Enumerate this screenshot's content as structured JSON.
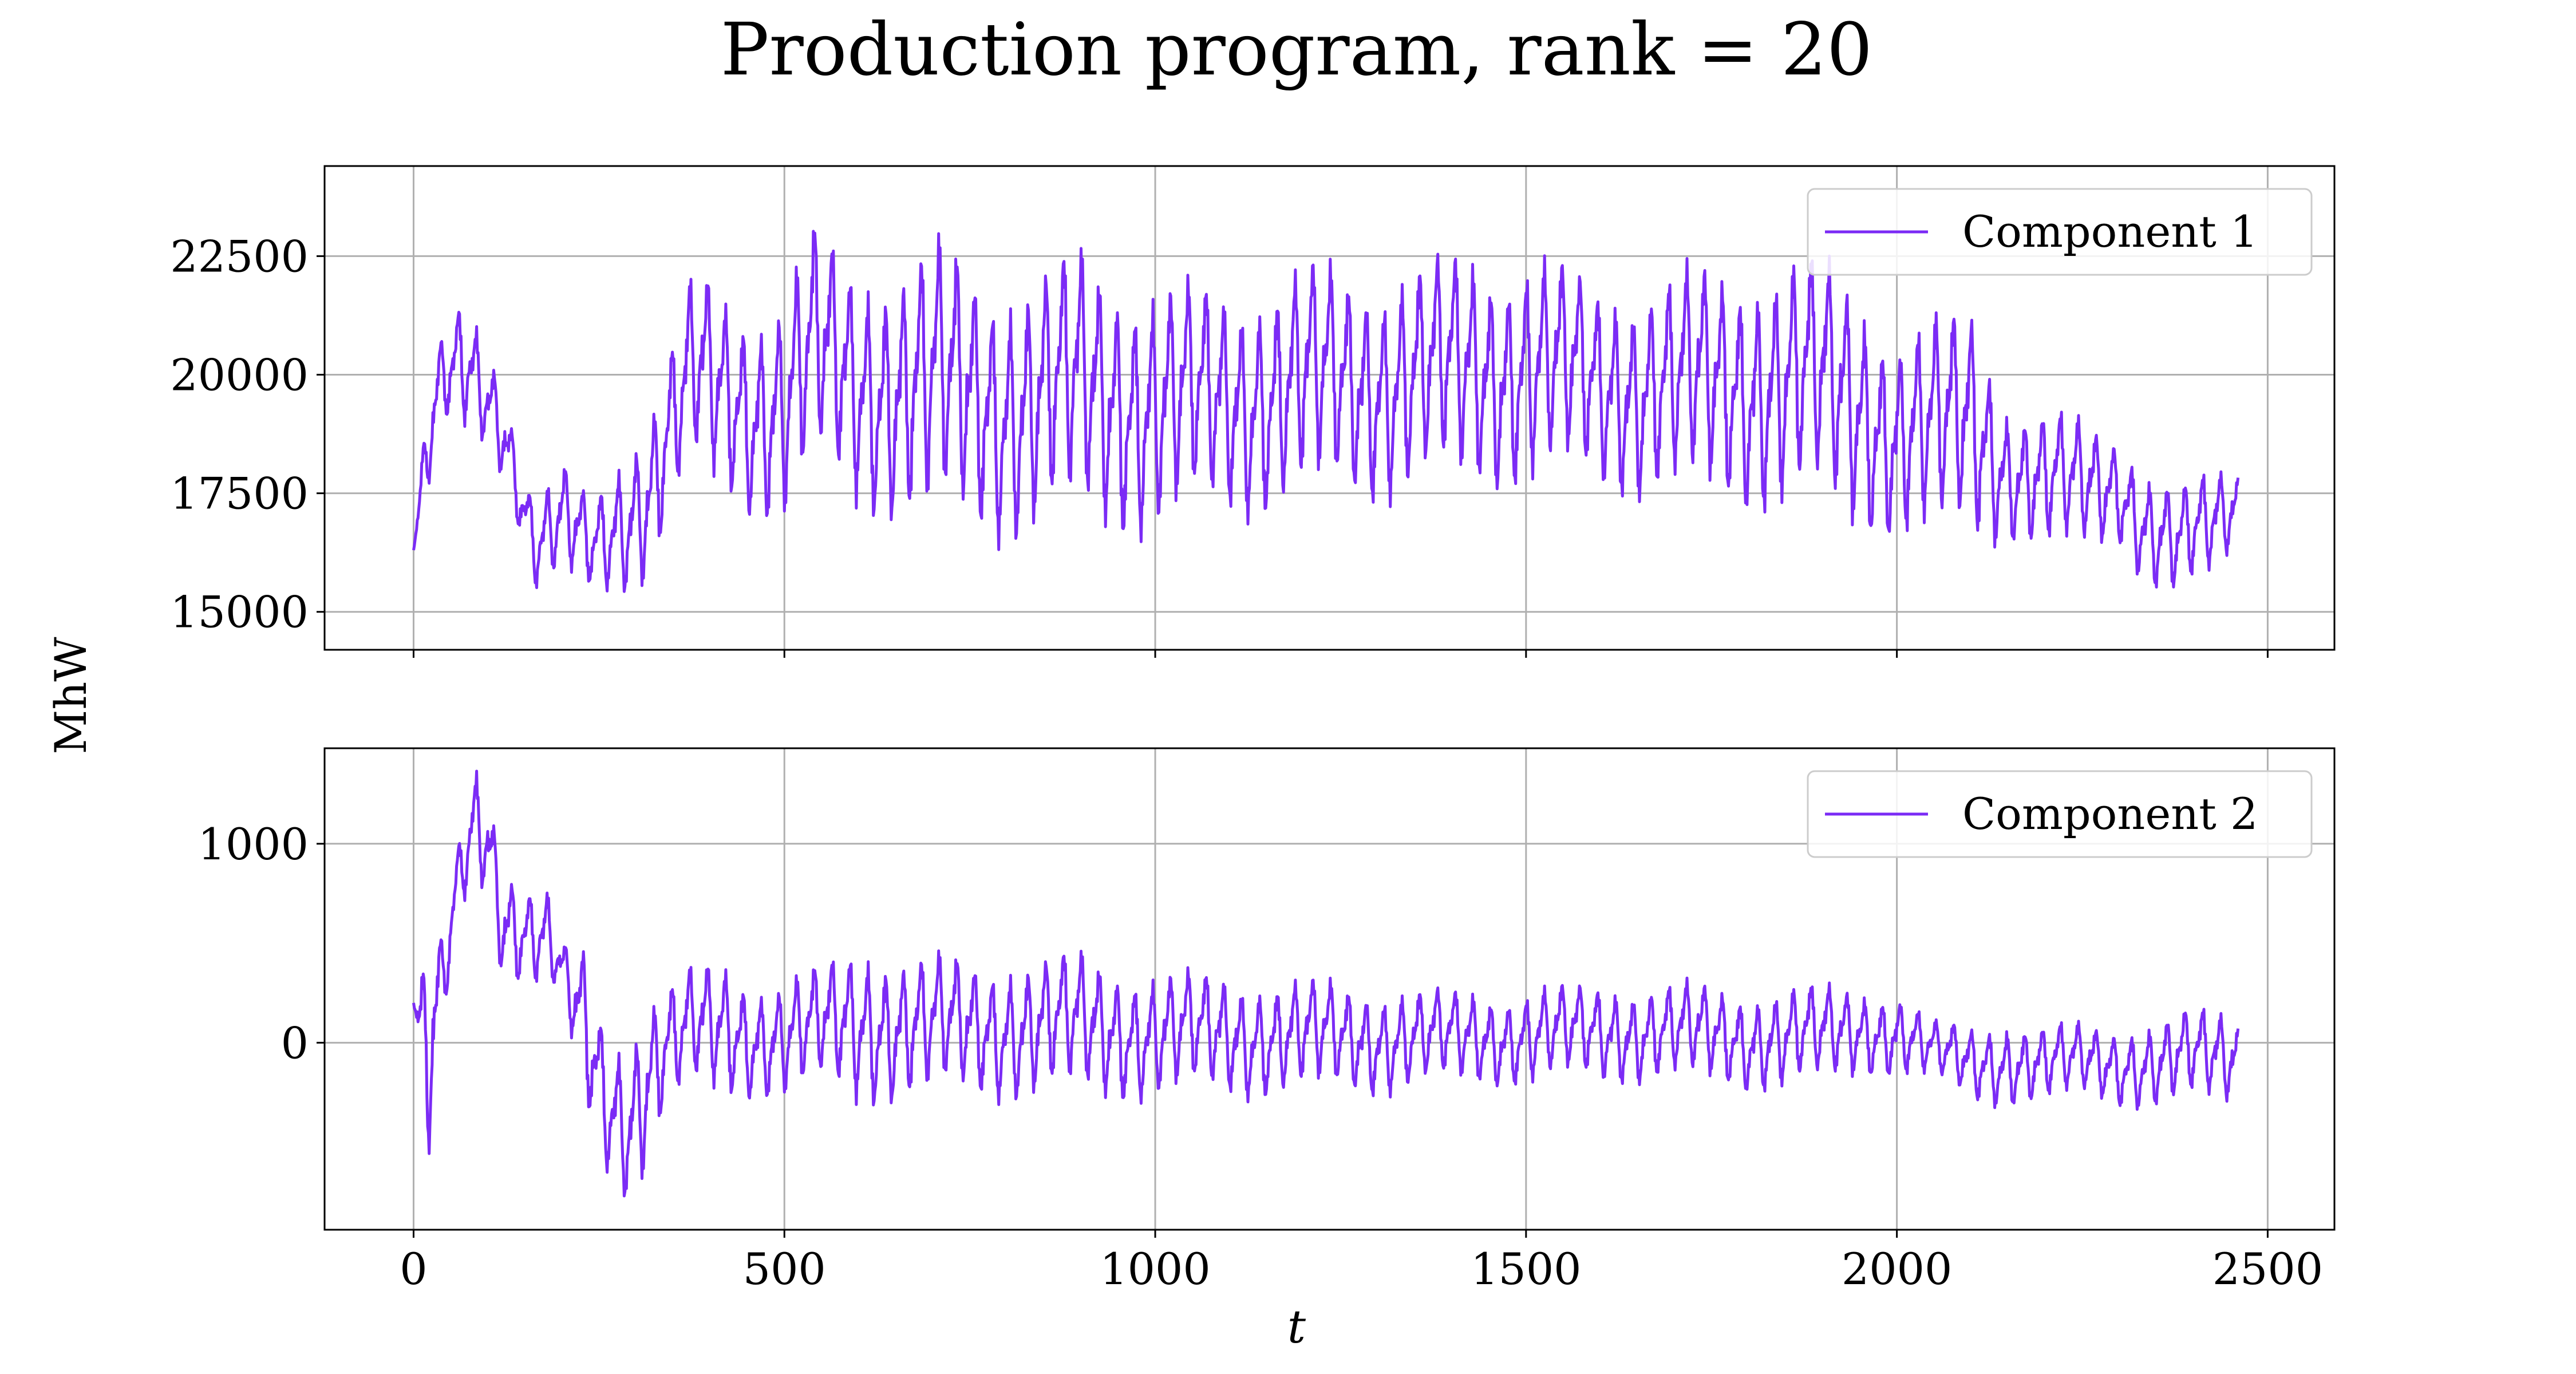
{
  "figure": {
    "title": "Production program, rank = 20",
    "ylabel": "MhW",
    "xlabel": "t"
  },
  "chart_data": [
    {
      "type": "line",
      "title": "",
      "xlabel": "t",
      "ylabel": "MhW",
      "xlim": [
        -120,
        2590
      ],
      "ylim": [
        14200,
        24400
      ],
      "xticks": [
        0,
        500,
        1000,
        1500,
        2000,
        2500
      ],
      "yticks": [
        15000,
        17500,
        20000,
        22500
      ],
      "grid": true,
      "legend_position": "top-right",
      "color": "#7b2bf5",
      "series": [
        {
          "name": "Component 1",
          "envelope": {
            "x": [
              0,
              20,
              40,
              70,
              100,
              120,
              140,
              165,
              200,
              240,
              280,
              320,
              350,
              380,
              420,
              460,
              500,
              540,
              600,
              700,
              800,
              900,
              1000,
              1100,
              1200,
              1300,
              1400,
              1500,
              1600,
              1700,
              1800,
              1900,
              1950,
              2000,
              2060,
              2100,
              2150,
              2200,
              2250,
              2300,
              2340,
              2380,
              2420,
              2460
            ],
            "upper": [
              16300,
              19900,
              21000,
              21800,
              20700,
              20300,
              18700,
              17400,
              18200,
              17500,
              18600,
              19600,
              21000,
              22500,
              22000,
              21800,
              22100,
              23400,
              22600,
              23100,
              22400,
              22900,
              22300,
              22100,
              22600,
              22500,
              22800,
              22900,
              22200,
              22400,
              22700,
              22800,
              22200,
              21200,
              21400,
              21900,
              19600,
              19400,
              19200,
              19000,
              18100,
              17700,
              18100,
              18300
            ],
            "lower": [
              16300,
              17200,
              18600,
              18500,
              18400,
              17800,
              16800,
              15300,
              15500,
              15200,
              15300,
              15600,
              16900,
              17500,
              17200,
              16800,
              16700,
              17500,
              17000,
              16400,
              16300,
              16500,
              16400,
              16800,
              17000,
              17200,
              17300,
              17500,
              17400,
              17100,
              17000,
              16800,
              16500,
              16300,
              16100,
              16300,
              16400,
              16000,
              16100,
              16400,
              15300,
              15000,
              15500,
              16400
            ]
          }
        }
      ]
    },
    {
      "type": "line",
      "title": "",
      "xlabel": "t",
      "ylabel": "MhW",
      "xlim": [
        -120,
        2590
      ],
      "ylim": [
        -940,
        1480
      ],
      "xticks": [
        0,
        500,
        1000,
        1500,
        2000,
        2500
      ],
      "yticks": [
        0,
        1000
      ],
      "grid": true,
      "legend_position": "top-right",
      "color": "#7b2bf5",
      "series": [
        {
          "name": "Component 2",
          "envelope": {
            "x": [
              0,
              20,
              40,
              60,
              80,
              100,
              120,
              150,
              180,
              200,
              230,
              260,
              290,
              310,
              340,
              380,
              420,
              460,
              500,
              550,
              600,
              700,
              800,
              900,
              1000,
              1100,
              1200,
              1300,
              1400,
              1500,
              1600,
              1700,
              1800,
              1900,
              1950,
              2000,
              2050,
              2100,
              2150,
              2200,
              2250,
              2300,
              2350,
              2400,
              2460
            ],
            "upper": [
              200,
              570,
              560,
              1000,
              1450,
              1350,
              1000,
              850,
              800,
              500,
              510,
              100,
              80,
              300,
              330,
              420,
              450,
              360,
              360,
              420,
              560,
              470,
              470,
              490,
              400,
              380,
              350,
              320,
              290,
              300,
              330,
              330,
              300,
              320,
              310,
              290,
              120,
              120,
              140,
              110,
              120,
              120,
              130,
              200,
              200
            ],
            "lower": [
              200,
              -820,
              0,
              600,
              700,
              750,
              300,
              280,
              230,
              200,
              -430,
              -700,
              -820,
              -680,
              -380,
              -300,
              -320,
              -300,
              -300,
              -280,
              -340,
              -320,
              -310,
              -320,
              -310,
              -300,
              -290,
              -280,
              -240,
              -230,
              -220,
              -220,
              -260,
              -250,
              -180,
              -190,
              -210,
              -320,
              -330,
              -340,
              -290,
              -330,
              -360,
              -340,
              -320
            ]
          }
        }
      ]
    }
  ]
}
